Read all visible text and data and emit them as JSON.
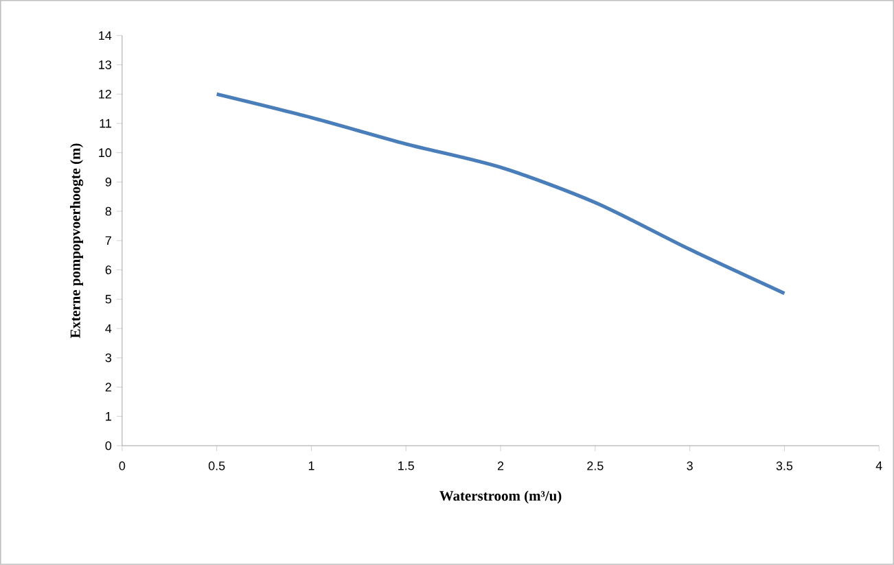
{
  "chart_data": {
    "type": "line",
    "xlabel": "Waterstroom (m³/u)",
    "ylabel": "Externe pompopvoerhoogte (m)",
    "x": [
      0.5,
      1,
      1.5,
      2,
      2.5,
      3,
      3.5
    ],
    "series": [
      {
        "color": "#4a7ebb",
        "values": [
          12.0,
          11.2,
          10.3,
          9.5,
          8.3,
          6.7,
          5.2
        ]
      }
    ],
    "xlim": [
      0,
      4
    ],
    "ylim": [
      0,
      14
    ],
    "xticks": [
      0,
      0.5,
      1,
      1.5,
      2,
      2.5,
      3,
      3.5,
      4
    ],
    "yticks": [
      0,
      1,
      2,
      3,
      4,
      5,
      6,
      7,
      8,
      9,
      10,
      11,
      12,
      13,
      14
    ],
    "grid": false,
    "legend": false,
    "marker": "none",
    "line_style": "solid"
  }
}
